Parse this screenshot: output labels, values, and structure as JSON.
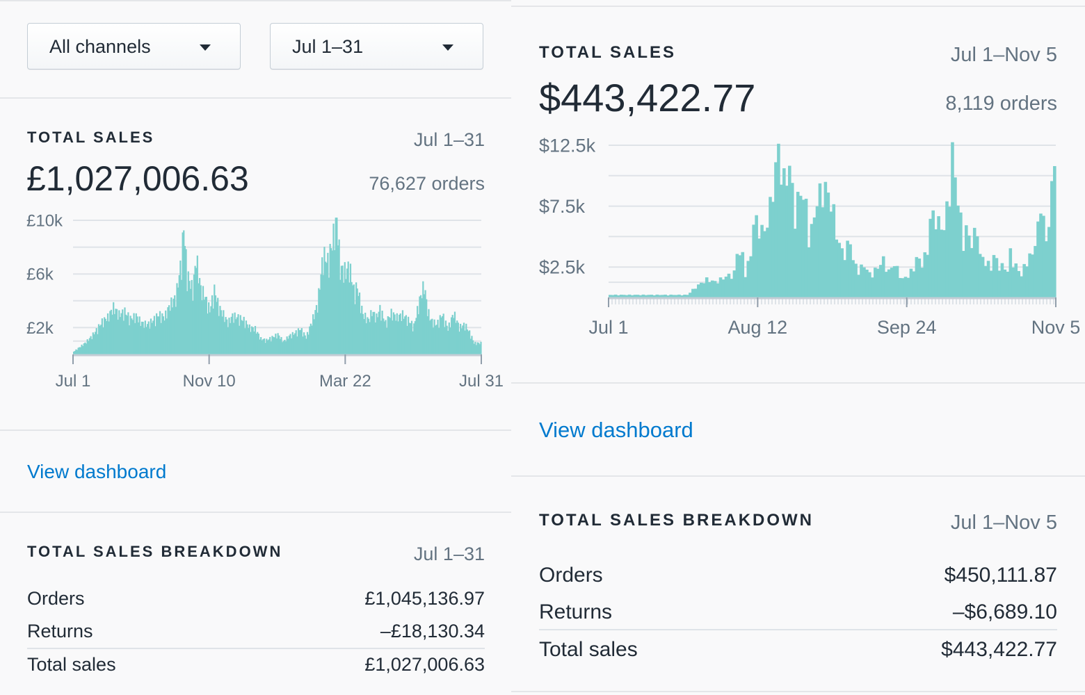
{
  "left": {
    "filters": {
      "channel": "All channels",
      "period": "Jul 1–31"
    },
    "sales": {
      "title": "TOTAL SALES",
      "date_range": "Jul 1–31",
      "amount": "£1,027,006.63",
      "orders": "76,627 orders"
    },
    "view_dashboard": "View dashboard",
    "breakdown": {
      "title": "TOTAL SALES BREAKDOWN",
      "date_range": "Jul 1–31",
      "rows": [
        {
          "label": "Orders",
          "value": "£1,045,136.97"
        },
        {
          "label": "Returns",
          "value": "–£18,130.34"
        },
        {
          "label": "Total sales",
          "value": "£1,027,006.63"
        }
      ]
    }
  },
  "right": {
    "sales": {
      "title": "TOTAL SALES",
      "date_range": "Jul 1–Nov 5",
      "amount": "$443,422.77",
      "orders": "8,119 orders"
    },
    "view_dashboard": "View dashboard",
    "breakdown": {
      "title": "TOTAL SALES BREAKDOWN",
      "date_range": "Jul 1–Nov 5",
      "rows": [
        {
          "label": "Orders",
          "value": "$450,111.87"
        },
        {
          "label": "Returns",
          "value": "–$6,689.10"
        },
        {
          "label": "Total sales",
          "value": "$443,422.77"
        }
      ]
    }
  },
  "colors": {
    "bar": "#7dd0ce",
    "grid": "#dfe3e8",
    "link": "#007ace"
  },
  "chart_data": [
    {
      "type": "bar",
      "title": "TOTAL SALES",
      "currency": "£",
      "y_tick_labels": [
        "£10k",
        "£6k",
        "£2k"
      ],
      "y_ticks": [
        10000,
        6000,
        2000
      ],
      "ylim": [
        0,
        10000
      ],
      "x_tick_labels": [
        "Jul 1",
        "Nov 10",
        "Mar 22",
        "Jul 31"
      ],
      "grid": true,
      "anchors": [
        [
          0,
          200
        ],
        [
          5,
          500
        ],
        [
          10,
          800
        ],
        [
          15,
          1200
        ],
        [
          20,
          1700
        ],
        [
          25,
          2300
        ],
        [
          30,
          2600
        ],
        [
          35,
          3300
        ],
        [
          40,
          2800
        ],
        [
          45,
          3000
        ],
        [
          50,
          2500
        ],
        [
          55,
          2700
        ],
        [
          60,
          2200
        ],
        [
          65,
          2100
        ],
        [
          70,
          2400
        ],
        [
          75,
          2800
        ],
        [
          80,
          2600
        ],
        [
          85,
          3500
        ],
        [
          90,
          4000
        ],
        [
          95,
          6600
        ],
        [
          97,
          9000
        ],
        [
          100,
          5600
        ],
        [
          105,
          4500
        ],
        [
          108,
          6800
        ],
        [
          112,
          4600
        ],
        [
          115,
          4200
        ],
        [
          120,
          3100
        ],
        [
          124,
          4500
        ],
        [
          128,
          3300
        ],
        [
          132,
          2800
        ],
        [
          136,
          2200
        ],
        [
          140,
          2700
        ],
        [
          145,
          2600
        ],
        [
          150,
          2400
        ],
        [
          155,
          1900
        ],
        [
          160,
          1800
        ],
        [
          165,
          1100
        ],
        [
          170,
          1000
        ],
        [
          175,
          1200
        ],
        [
          180,
          1400
        ],
        [
          185,
          900
        ],
        [
          190,
          1300
        ],
        [
          195,
          1500
        ],
        [
          200,
          1800
        ],
        [
          205,
          1200
        ],
        [
          210,
          2300
        ],
        [
          215,
          3500
        ],
        [
          220,
          7000
        ],
        [
          224,
          6500
        ],
        [
          228,
          7800
        ],
        [
          232,
          9800
        ],
        [
          235,
          6000
        ],
        [
          240,
          5800
        ],
        [
          243,
          6200
        ],
        [
          247,
          4500
        ],
        [
          250,
          4700
        ],
        [
          255,
          2800
        ],
        [
          260,
          2400
        ],
        [
          263,
          3000
        ],
        [
          267,
          2600
        ],
        [
          270,
          3200
        ],
        [
          275,
          2200
        ],
        [
          280,
          2900
        ],
        [
          285,
          2600
        ],
        [
          290,
          2800
        ],
        [
          295,
          2400
        ],
        [
          300,
          2000
        ],
        [
          305,
          3800
        ],
        [
          309,
          4900
        ],
        [
          312,
          3100
        ],
        [
          315,
          2400
        ],
        [
          320,
          2100
        ],
        [
          325,
          2800
        ],
        [
          330,
          1800
        ],
        [
          335,
          2900
        ],
        [
          340,
          1900
        ],
        [
          345,
          2100
        ],
        [
          350,
          1400
        ],
        [
          353,
          800
        ]
      ],
      "bar_count": 360
    },
    {
      "type": "bar",
      "title": "TOTAL SALES",
      "currency": "$",
      "y_tick_labels": [
        "$12.5k",
        "$7.5k",
        "$2.5k"
      ],
      "y_ticks": [
        12500,
        7500,
        2500
      ],
      "ylim": [
        0,
        12500
      ],
      "x_tick_labels": [
        "Jul 1",
        "Aug 12",
        "Sep 24",
        "Nov 5"
      ],
      "grid": true,
      "anchors": [
        [
          0,
          200
        ],
        [
          10,
          200
        ],
        [
          20,
          200
        ],
        [
          28,
          200
        ],
        [
          31,
          800
        ],
        [
          33,
          1100
        ],
        [
          35,
          1400
        ],
        [
          38,
          1200
        ],
        [
          41,
          1500
        ],
        [
          45,
          1900
        ],
        [
          46,
          3500
        ],
        [
          48,
          3200
        ],
        [
          49,
          2000
        ],
        [
          51,
          3200
        ],
        [
          52,
          6000
        ],
        [
          56,
          5000
        ],
        [
          58,
          7000
        ],
        [
          60,
          10000
        ],
        [
          61,
          11300
        ],
        [
          63,
          9000
        ],
        [
          65,
          10000
        ],
        [
          67,
          6500
        ],
        [
          69,
          8300
        ],
        [
          71,
          7000
        ],
        [
          72,
          5000
        ],
        [
          73,
          5200
        ],
        [
          75,
          7400
        ],
        [
          77,
          8600
        ],
        [
          79,
          8000
        ],
        [
          81,
          6500
        ],
        [
          83,
          4000
        ],
        [
          85,
          3300
        ],
        [
          87,
          4600
        ],
        [
          88,
          2800
        ],
        [
          90,
          2100
        ],
        [
          92,
          2500
        ],
        [
          94,
          1800
        ],
        [
          96,
          2100
        ],
        [
          97,
          2300
        ],
        [
          99,
          2900
        ],
        [
          100,
          2500
        ],
        [
          101,
          2000
        ],
        [
          103,
          2600
        ],
        [
          105,
          1800
        ],
        [
          106,
          1400
        ],
        [
          108,
          1700
        ],
        [
          110,
          2300
        ],
        [
          111,
          3000
        ],
        [
          113,
          2700
        ],
        [
          115,
          3600
        ],
        [
          116,
          6000
        ],
        [
          118,
          6500
        ],
        [
          119,
          5700
        ],
        [
          121,
          5300
        ],
        [
          122,
          6800
        ],
        [
          124,
          11300
        ],
        [
          126,
          7500
        ],
        [
          128,
          4400
        ],
        [
          129,
          5200
        ],
        [
          131,
          4200
        ],
        [
          133,
          5500
        ],
        [
          134,
          3200
        ],
        [
          136,
          2800
        ],
        [
          138,
          2300
        ],
        [
          139,
          3200
        ],
        [
          141,
          2500
        ],
        [
          143,
          2300
        ],
        [
          144,
          2000
        ],
        [
          145,
          3500
        ],
        [
          147,
          2400
        ],
        [
          148,
          2100
        ],
        [
          149,
          1700
        ],
        [
          151,
          3000
        ],
        [
          153,
          3300
        ],
        [
          155,
          5300
        ],
        [
          156,
          7700
        ],
        [
          158,
          4200
        ],
        [
          160,
          8100
        ],
        [
          161,
          11500
        ]
      ],
      "bar_count": 162
    }
  ]
}
